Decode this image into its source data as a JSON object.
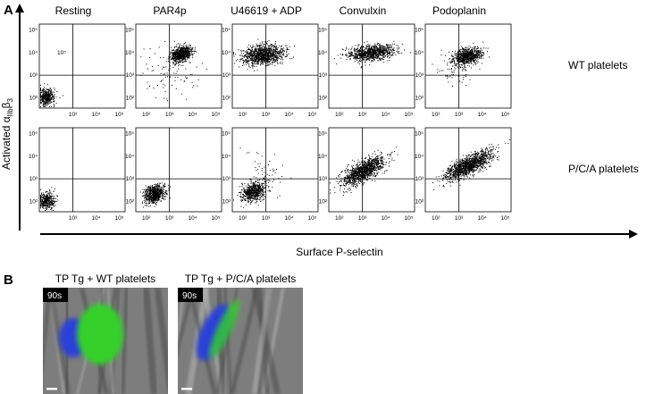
{
  "panel_a": {
    "label": "A",
    "y_axis_label": {
      "main": "Activated α",
      "sub1": "IIb",
      "mid": "β",
      "sub2": "3"
    },
    "x_axis_label": "Surface P-selectin",
    "columns": [
      "Resting",
      "PAR4p",
      "U46619 + ADP",
      "Convulxin",
      "Podoplanin"
    ],
    "rows": [
      "WT platelets",
      "P/C/A platelets"
    ],
    "tick_labels": [
      "10²",
      "10³",
      "10⁴",
      "10⁵"
    ],
    "inset_text": "10⁵"
  },
  "panel_b": {
    "label": "B",
    "images": [
      {
        "title": "TP Tg + WT platelets",
        "time": "90s"
      },
      {
        "title": "TP Tg + P/C/A platelets",
        "time": "90s"
      }
    ]
  }
}
